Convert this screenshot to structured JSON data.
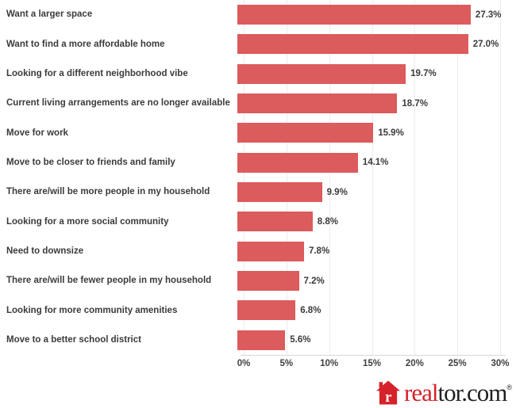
{
  "chart_data": {
    "type": "bar",
    "orientation": "horizontal",
    "categories": [
      "Want a larger space",
      "Want to find a more affordable home",
      "Looking for a different neighborhood vibe",
      "Current living arrangements are no longer available",
      "Move for work",
      "Move to be closer to friends and family",
      "There are/will be more people in my household",
      "Looking for a more social community",
      "Need to downsize",
      "There are/will be fewer people in my household",
      "Looking for more community amenities",
      "Move to a better school district"
    ],
    "values": [
      27.3,
      27.0,
      19.7,
      18.7,
      15.9,
      14.1,
      9.9,
      8.8,
      7.8,
      7.2,
      6.8,
      5.6
    ],
    "value_labels": [
      "27.3%",
      "27.0%",
      "19.7%",
      "18.7%",
      "15.9%",
      "14.1%",
      "9.9%",
      "8.8%",
      "7.8%",
      "7.2%",
      "6.8%",
      "5.6%"
    ],
    "x_ticks": [
      "0%",
      "5%",
      "10%",
      "15%",
      "20%",
      "25%",
      "30%"
    ],
    "xlim": [
      0,
      30
    ],
    "grid": true,
    "legend": false,
    "bar_color": "#dc5b5c",
    "label_color": "#3b3b3b",
    "gridline_color": "#ececec"
  },
  "logo": {
    "icon": "realtor-house-icon",
    "icon_letter": "r",
    "text_red": "real",
    "text_dark": "tor.com",
    "trademark": "®",
    "brand_red": "#d6222a",
    "brand_dark": "#211f1f"
  }
}
